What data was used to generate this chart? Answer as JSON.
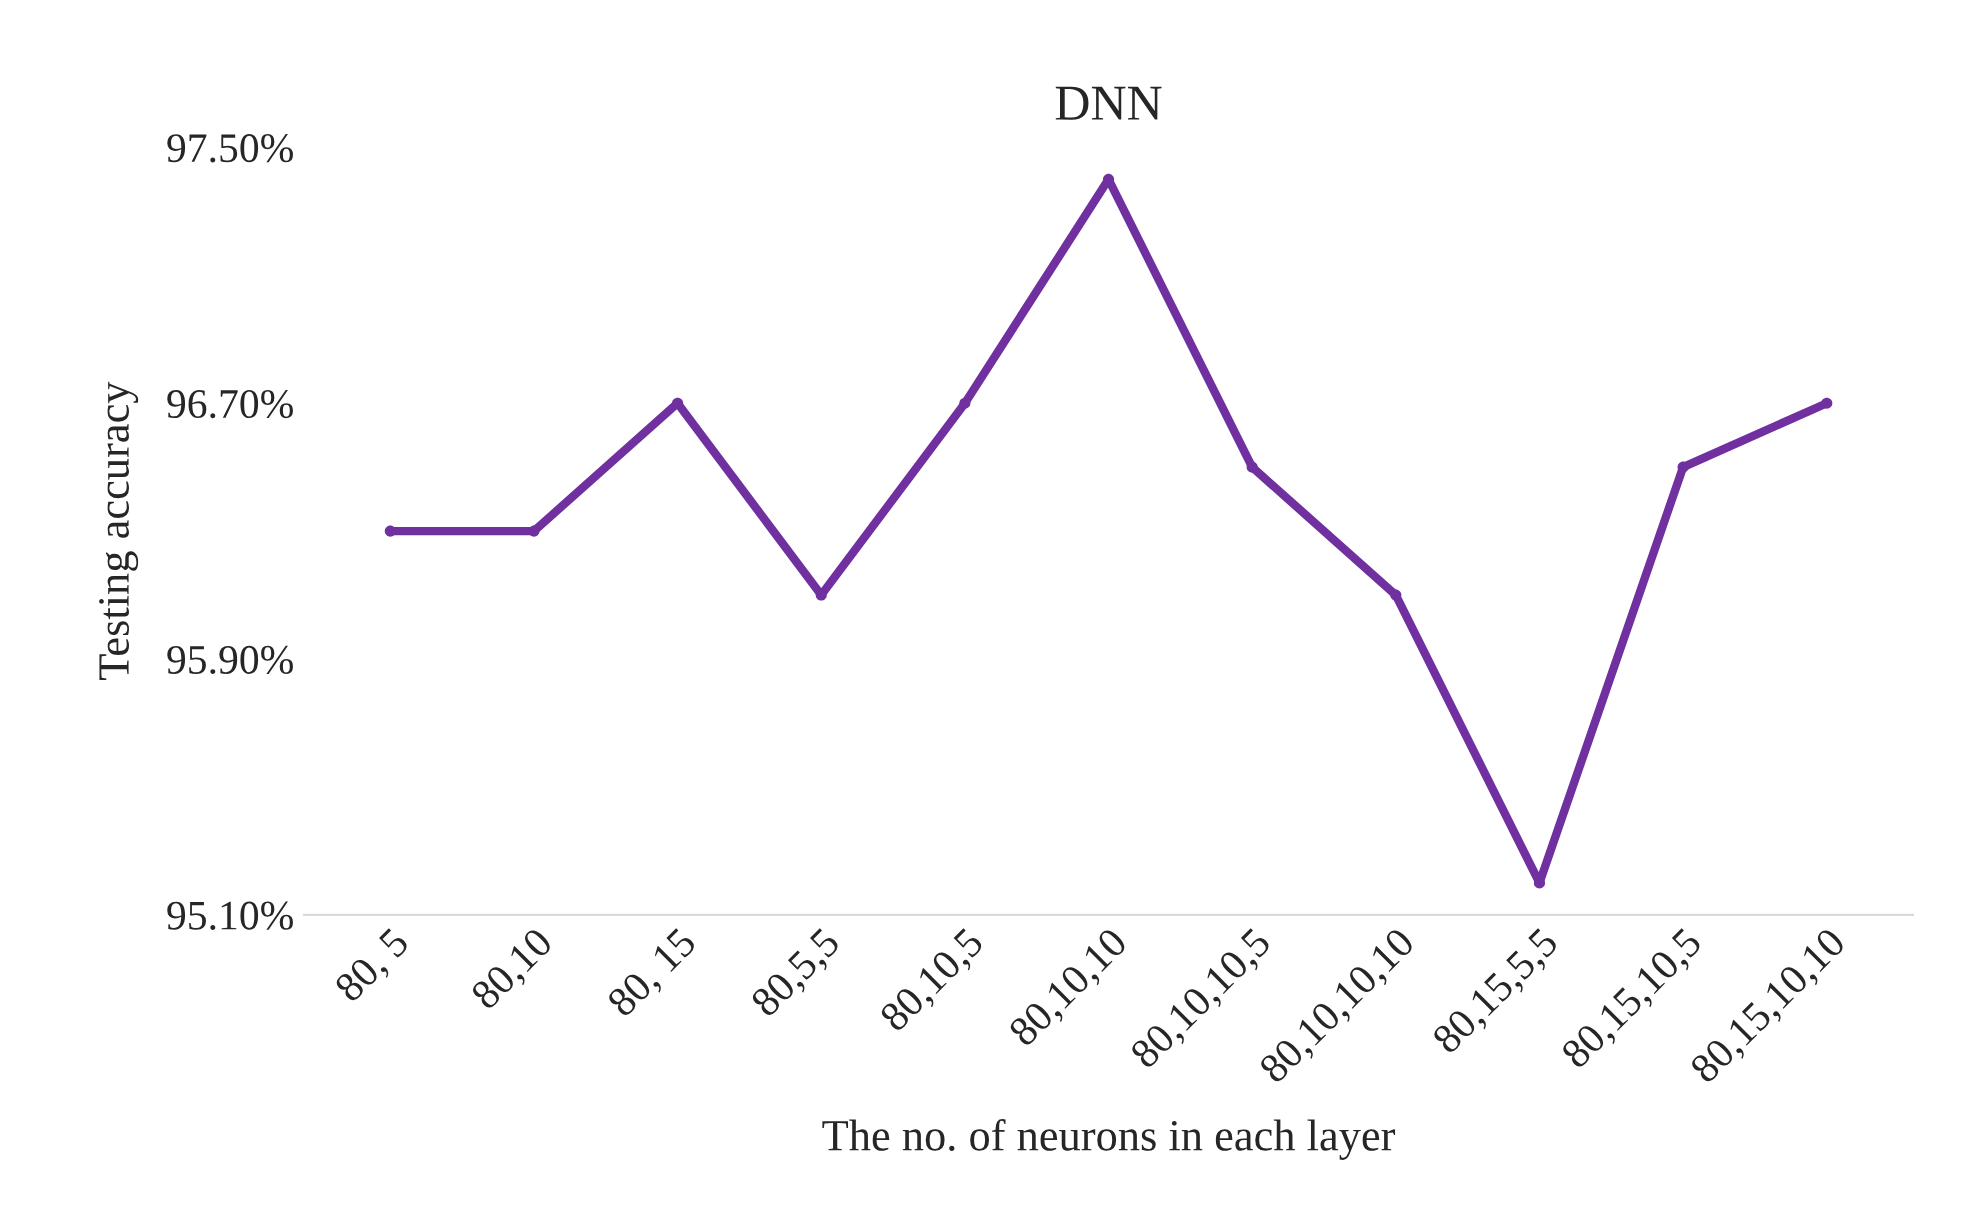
{
  "chart_data": {
    "type": "line",
    "title": "DNN",
    "xlabel": "The no. of neurons in each layer",
    "ylabel": "Testing accuracy",
    "categories": [
      "80, 5",
      "80,10",
      "80, 15",
      "80,5,5",
      "80,10,5",
      "80,10,10",
      "80,10,10,5",
      "80,10,10,10",
      "80,15,5,5",
      "80,15,10,5",
      "80,15,10,10"
    ],
    "series": [
      {
        "color": "#7030a0",
        "values": [
          96.3,
          96.3,
          96.7,
          96.1,
          96.7,
          97.4,
          96.5,
          96.1,
          95.2,
          96.5,
          96.7
        ]
      }
    ],
    "ylim": [
      95.1,
      97.5
    ],
    "yticks": [
      {
        "value": 95.1,
        "label": "95.10%"
      },
      {
        "value": 95.9,
        "label": "95.90%"
      },
      {
        "value": 96.7,
        "label": "96.70%"
      },
      {
        "value": 97.5,
        "label": "97.50%"
      }
    ],
    "marker": "circle",
    "line_style": "solid",
    "grid": false
  }
}
